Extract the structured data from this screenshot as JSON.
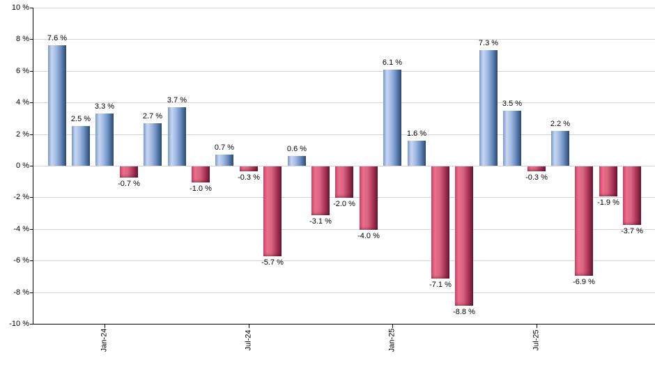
{
  "chart_data": {
    "type": "bar",
    "title": "",
    "xlabel": "",
    "ylabel": "",
    "unit": "%",
    "ylim": [
      -10,
      10
    ],
    "y_step": 2,
    "grid": true,
    "legend": "none",
    "values": [
      7.6,
      2.5,
      3.3,
      -0.7,
      2.7,
      3.7,
      -1.0,
      0.7,
      -0.3,
      -5.7,
      0.6,
      -3.1,
      -2.0,
      -4.0,
      6.1,
      1.6,
      -7.1,
      -8.8,
      7.3,
      3.5,
      -0.3,
      2.2,
      -6.9,
      -1.9,
      -3.7
    ],
    "bar_labels": [
      "7.6 %",
      "2.5 %",
      "3.3 %",
      "-0.7 %",
      "2.7 %",
      "3.7 %",
      "-1.0 %",
      "0.7 %",
      "-0.3 %",
      "-5.7 %",
      "0.6 %",
      "-3.1 %",
      "-2.0 %",
      "-4.0 %",
      "6.1 %",
      "1.6 %",
      "-7.1 %",
      "-8.8 %",
      "7.3 %",
      "3.5 %",
      "-0.3 %",
      "2.2 %",
      "-6.9 %",
      "-1.9 %",
      "-3.7 %"
    ],
    "y_ticks": [
      {
        "value": 10,
        "label": "10 %"
      },
      {
        "value": 8,
        "label": "8 %"
      },
      {
        "value": 6,
        "label": "6 %"
      },
      {
        "value": 4,
        "label": "4 %"
      },
      {
        "value": 2,
        "label": "2 %"
      },
      {
        "value": 0,
        "label": "0 %"
      },
      {
        "value": -2,
        "label": "-2 %"
      },
      {
        "value": -4,
        "label": "-4 %"
      },
      {
        "value": -6,
        "label": "-6 %"
      },
      {
        "value": -8,
        "label": "-8 %"
      },
      {
        "value": -10,
        "label": "-10 %"
      }
    ],
    "x_ticks": [
      {
        "bar_index": 2,
        "label": "Jan-24"
      },
      {
        "bar_index": 8,
        "label": "Jul-24"
      },
      {
        "bar_index": 14,
        "label": "Jan-25"
      },
      {
        "bar_index": 20,
        "label": "Jul-25"
      }
    ],
    "colors": {
      "positive_bar_light": "#c8d6f0",
      "positive_bar_mid": "#9fb9e3",
      "positive_bar_dark": "#2a4568",
      "negative_bar_light": "#ea6f8d",
      "negative_bar_mid": "#d96580",
      "negative_bar_dark": "#641530",
      "gridline": "#d3d3d3",
      "axis": "#000000",
      "text": "#000000",
      "background": "#ffffff"
    }
  }
}
